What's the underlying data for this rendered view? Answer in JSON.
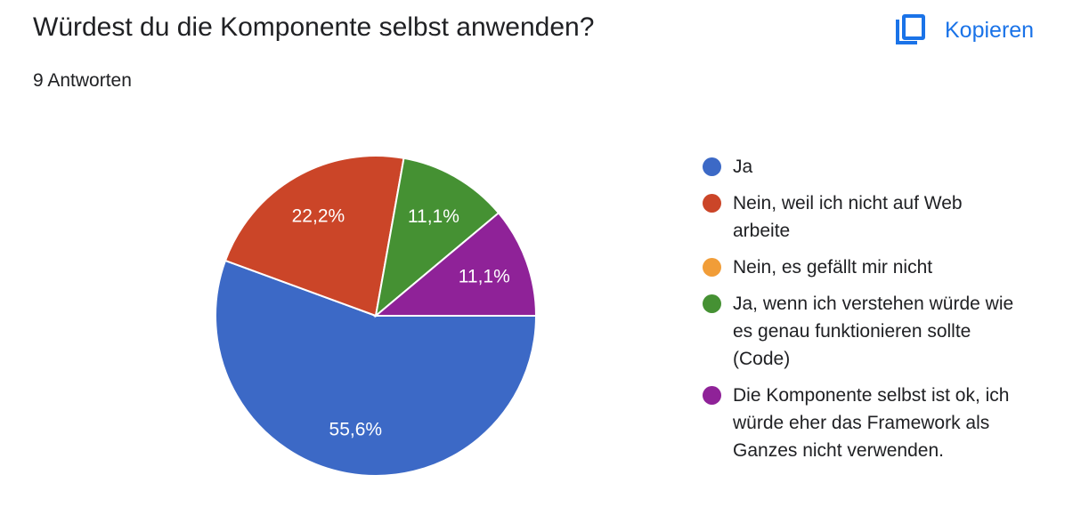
{
  "header": {
    "title": "Würdest du die Komponente selbst anwenden?",
    "responses": "9 Antworten",
    "copy_label": "Kopieren",
    "copy_icon": "copy-icon",
    "accent_color": "#1a73e8"
  },
  "chart_data": {
    "type": "pie",
    "categories": [
      "Ja",
      "Nein, weil ich nicht auf Web arbeite",
      "Nein, es gefällt mir nicht",
      "Ja, wenn ich verstehen würde wie es genau funktionieren sollte (Code)",
      "Die Komponente selbst ist ok, ich würde eher das Framework als Ganzes nicht verwenden."
    ],
    "values": [
      55.6,
      22.2,
      0,
      11.1,
      11.1
    ],
    "data_labels": [
      "55,6%",
      "22,2%",
      "",
      "11,1%",
      "11,1%"
    ],
    "colors": [
      "#3c69c6",
      "#cb4528",
      "#f19d38",
      "#459133",
      "#8f2298"
    ],
    "legend_position": "right"
  }
}
